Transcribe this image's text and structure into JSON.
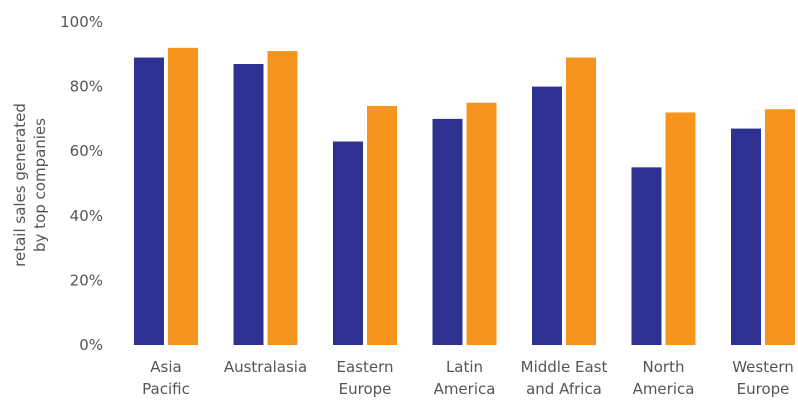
{
  "chart_data": {
    "type": "bar",
    "categories": [
      [
        "Asia",
        "Pacific"
      ],
      [
        "Australasia"
      ],
      [
        "Eastern",
        "Europe"
      ],
      [
        "Latin",
        "America"
      ],
      [
        "Middle East",
        "and Africa"
      ],
      [
        "North",
        "America"
      ],
      [
        "Western",
        "Europe"
      ]
    ],
    "series": [
      {
        "values": [
          89,
          87,
          63,
          70,
          80,
          55,
          67
        ],
        "color": "#2e3192"
      },
      {
        "values": [
          92,
          91,
          74,
          75,
          89,
          72,
          73
        ],
        "color": "#f7941d"
      }
    ],
    "ylabel": [
      "retail sales generated",
      "by top companies"
    ],
    "ylim": [
      0,
      100
    ],
    "yticks": [
      {
        "value": 0,
        "label": "0%"
      },
      {
        "value": 20,
        "label": "20%"
      },
      {
        "value": 40,
        "label": "40%"
      },
      {
        "value": 60,
        "label": "60%"
      },
      {
        "value": 80,
        "label": "80%"
      },
      {
        "value": 100,
        "label": "100%"
      }
    ],
    "grid": false,
    "legend": "none"
  }
}
